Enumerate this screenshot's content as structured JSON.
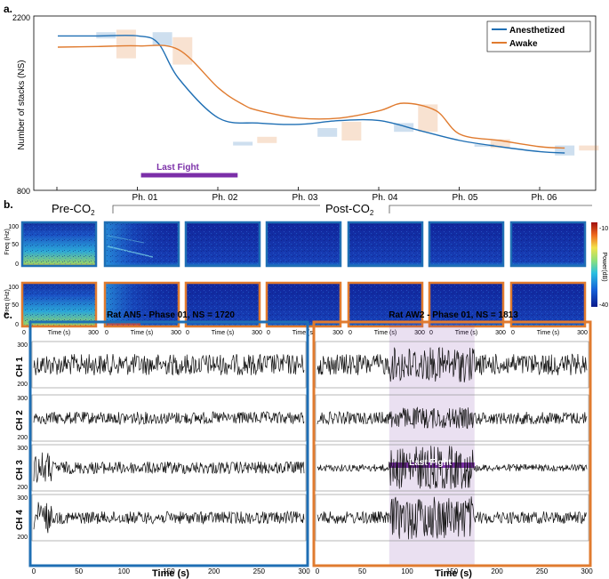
{
  "panels": {
    "a": "a.",
    "b": "b.",
    "c": "c."
  },
  "chart_data": [
    {
      "type": "line",
      "panel": "a",
      "ylabel": "Number of stacks (NS)",
      "ylim": [
        800,
        2200
      ],
      "yticks": [
        "2200",
        "800"
      ],
      "x_phases": [
        "Ph. 01",
        "Ph. 02",
        "Ph. 03",
        "Ph. 04",
        "Ph. 05",
        "Ph. 06"
      ],
      "legend": {
        "position": "top-right",
        "entries": [
          "Anesthetized",
          "Awake"
        ]
      },
      "colors": {
        "Anesthetized": "#1f6fb4",
        "Awake": "#e07b2f"
      },
      "annotation": "Last Fight",
      "annotation_color": "#7b2fa8",
      "series": [
        {
          "name": "Anesthetized",
          "x": [
            0,
            0.5,
            1,
            1.25,
            1.5,
            2,
            2.5,
            3,
            3.5,
            4,
            4.5,
            5,
            5.5,
            6,
            6.3
          ],
          "values": [
            2040,
            2040,
            2040,
            1980,
            1700,
            1380,
            1340,
            1330,
            1360,
            1360,
            1280,
            1200,
            1150,
            1110,
            1100
          ]
        },
        {
          "name": "Awake",
          "x": [
            0,
            0.5,
            1,
            1.5,
            2,
            2.3,
            2.5,
            3,
            3.5,
            4,
            4.3,
            4.7,
            5,
            5.5,
            6,
            6.3
          ],
          "values": [
            1950,
            1955,
            1960,
            1930,
            1620,
            1490,
            1440,
            1380,
            1380,
            1440,
            1500,
            1440,
            1250,
            1200,
            1150,
            1140
          ]
        }
      ],
      "uncertainty_boxes": [
        {
          "series": "Anesthetized",
          "x": 0.6,
          "low": 2020,
          "high": 2070
        },
        {
          "series": "Awake",
          "x": 0.85,
          "low": 1860,
          "high": 2090
        },
        {
          "series": "Anesthetized",
          "x": 1.3,
          "low": 1960,
          "high": 2070
        },
        {
          "series": "Awake",
          "x": 1.55,
          "low": 1810,
          "high": 2030
        },
        {
          "series": "Anesthetized",
          "x": 2.3,
          "low": 1160,
          "high": 1190
        },
        {
          "series": "Awake",
          "x": 2.6,
          "low": 1180,
          "high": 1230
        },
        {
          "series": "Anesthetized",
          "x": 3.35,
          "low": 1230,
          "high": 1300
        },
        {
          "series": "Awake",
          "x": 3.65,
          "low": 1200,
          "high": 1350
        },
        {
          "series": "Anesthetized",
          "x": 4.3,
          "low": 1270,
          "high": 1340
        },
        {
          "series": "Awake",
          "x": 4.6,
          "low": 1270,
          "high": 1490
        },
        {
          "series": "Anesthetized",
          "x": 5.3,
          "low": 1150,
          "high": 1170
        },
        {
          "series": "Awake",
          "x": 5.5,
          "low": 1140,
          "high": 1210
        },
        {
          "series": "Anesthetized",
          "x": 6.3,
          "low": 1080,
          "high": 1160
        },
        {
          "series": "Awake",
          "x": 6.6,
          "low": 1120,
          "high": 1160
        }
      ],
      "last_fight_range": [
        1.2,
        2.6
      ]
    },
    {
      "type": "heatmap",
      "panel": "b",
      "ylabel": "Freq (Hz)",
      "yticks": [
        "100",
        "50",
        "0"
      ],
      "xlabel": "Time (s)",
      "xticks": [
        "0",
        "300"
      ],
      "colorbar": {
        "label": "Power(dB)",
        "min": "-40",
        "max": "-10",
        "range": [
          -40,
          -10
        ]
      },
      "group_labels": {
        "pre_main": "Pre-CO",
        "pre_sub": "2",
        "post_main": "Post-CO",
        "post_sub": "2"
      },
      "rows": [
        "Anesthetized",
        "Awake"
      ],
      "columns": 7
    },
    {
      "type": "line",
      "panel": "c",
      "xlabel": "Time (s)",
      "xticks": [
        "0",
        "50",
        "100",
        "150",
        "200",
        "250",
        "300"
      ],
      "yticks": [
        "300",
        "200"
      ],
      "channels": [
        "CH 1",
        "CH 2",
        "CH 3",
        "CH 4"
      ],
      "recordings": [
        {
          "title": "Rat AN5 - Phase 01, NS = 1720",
          "color": "#1f6fb4"
        },
        {
          "title": "Rat AW2 - Phase 01, NS = 1813",
          "color": "#e07b2f",
          "annotation": "Last Fight",
          "highlight_range": [
            80,
            175
          ]
        }
      ]
    }
  ]
}
